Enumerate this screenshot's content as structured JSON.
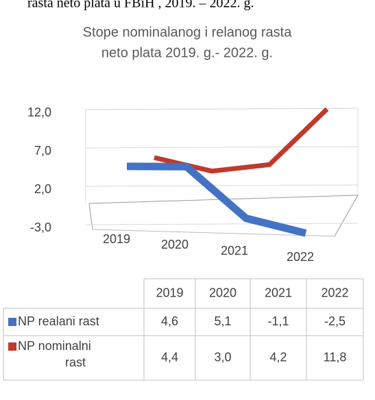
{
  "header_note": "rasta neto plata u FBiH , 2019. – 2022. g.",
  "chart_data": {
    "type": "line3d",
    "title": [
      "Stope nominalanog i relanog rasta",
      "neto plata 2019. g.- 2022. g."
    ],
    "categories": [
      "2019",
      "2020",
      "2021",
      "2022"
    ],
    "series": [
      {
        "name": "NP realani rast",
        "color": "#4472c4",
        "values": [
          4.6,
          5.1,
          -1.1,
          -2.5
        ],
        "value_labels": [
          "4,6",
          "5,1",
          "-1,1",
          "-2,5"
        ]
      },
      {
        "name": "NP nominalni rast",
        "color": "#c0392b",
        "values": [
          4.4,
          3.0,
          4.2,
          11.8
        ],
        "value_labels": [
          "4,4",
          "3,0",
          "4,2",
          "11,8"
        ]
      }
    ],
    "ylim": [
      -3,
      12
    ],
    "yticks": [
      {
        "value": -3,
        "label": "-3,0"
      },
      {
        "value": 2,
        "label": "2,0"
      },
      {
        "value": 7,
        "label": "7,0"
      },
      {
        "value": 12,
        "label": "12,0"
      }
    ],
    "grid": true,
    "data_table": true
  }
}
